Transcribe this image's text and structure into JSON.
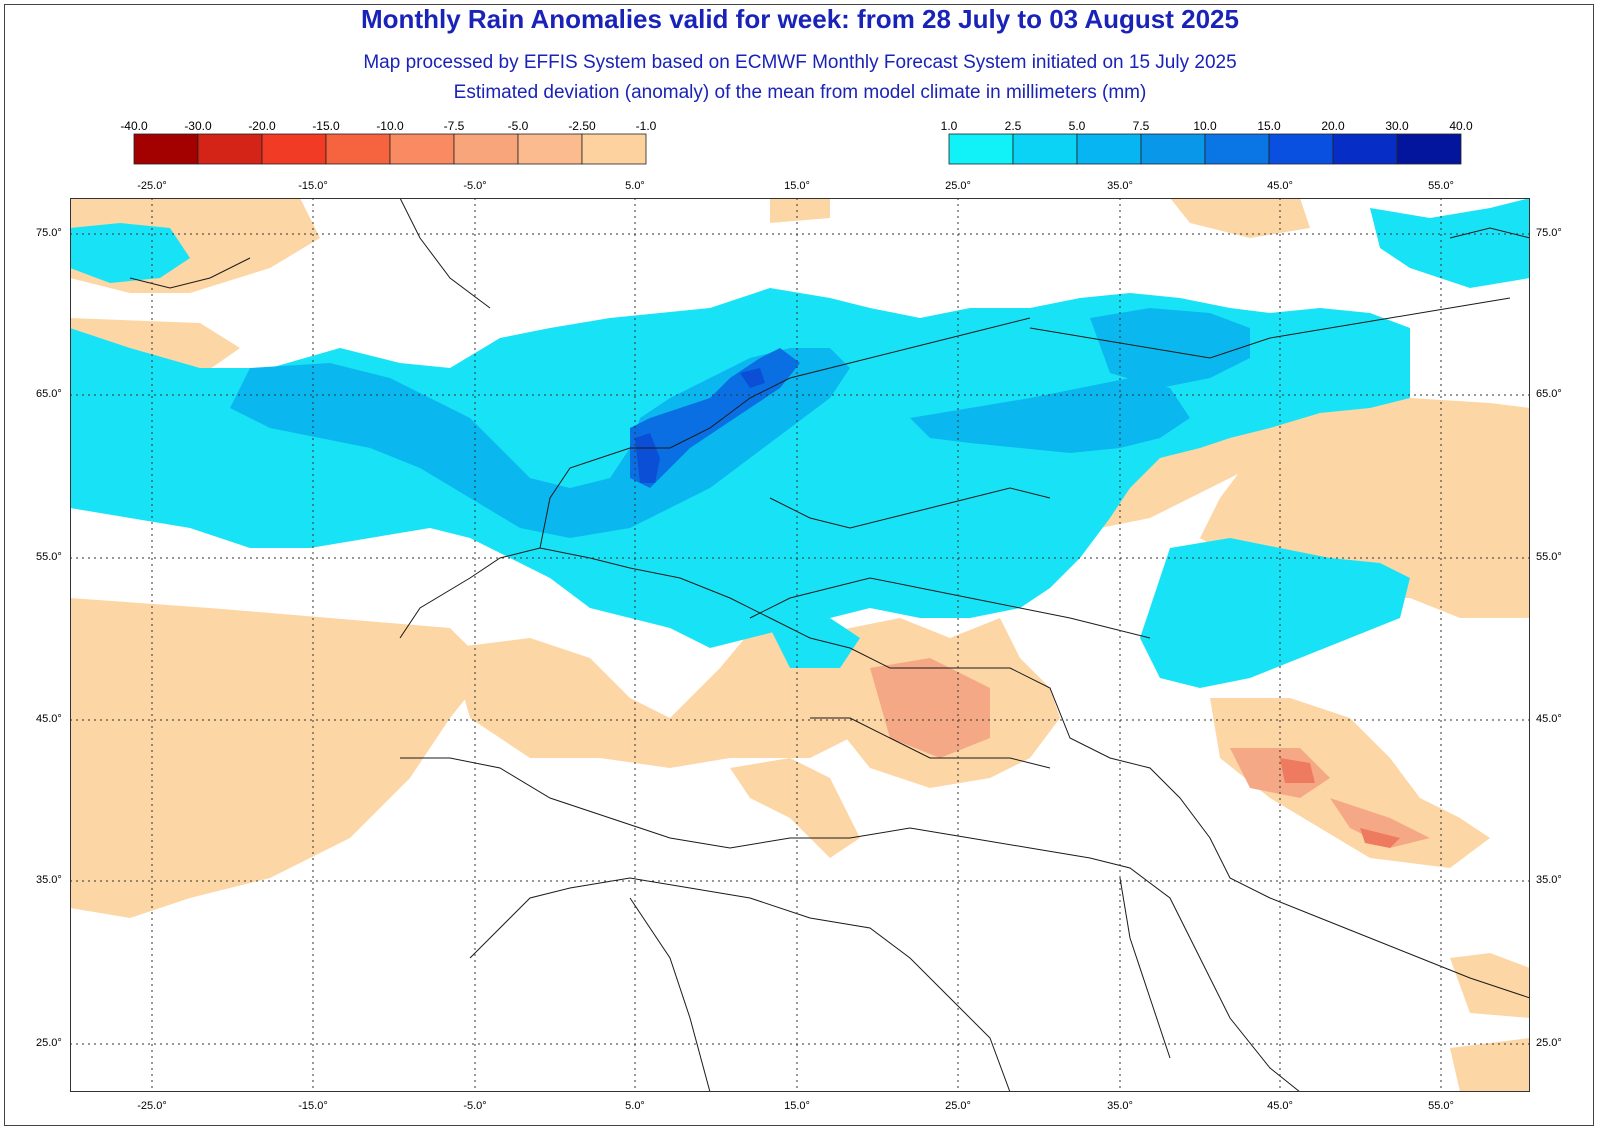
{
  "header": {
    "title": "Monthly Rain Anomalies valid for week: from 28 July to 03 August 2025",
    "subtitle_1": "Map processed by EFFIS System based on ECMWF Monthly Forecast System initiated on 15 July 2025",
    "subtitle_2": "Estimated deviation (anomaly) of the mean from model climate in millimeters (mm)"
  },
  "legend_negative": {
    "ticks": [
      "-40.0",
      "-30.0",
      "-20.0",
      "-15.0",
      "-10.0",
      "-7.5",
      "-5.0",
      "-2.50",
      "-1.0"
    ],
    "colors": [
      "#a30000",
      "#d42317",
      "#f23b24",
      "#f5643f",
      "#f98a61",
      "#f9a57b",
      "#fbbb8f",
      "#fdd29f"
    ]
  },
  "legend_positive": {
    "ticks": [
      "1.0",
      "2.5",
      "5.0",
      "7.5",
      "10.0",
      "15.0",
      "20.0",
      "30.0",
      "40.0"
    ],
    "colors": [
      "#10f1f8",
      "#0bd3f6",
      "#07b5f2",
      "#0997ea",
      "#0a75e5",
      "#0950e0",
      "#062dc5",
      "#03159c"
    ]
  },
  "axes": {
    "longitude_labels": [
      "-25.0°",
      "-15.0°",
      "-5.0°",
      "5.0°",
      "15.0°",
      "25.0°",
      "35.0°",
      "45.0°",
      "55.0°"
    ],
    "latitude_labels": [
      "75.0°",
      "65.0°",
      "55.0°",
      "45.0°",
      "35.0°",
      "25.0°"
    ]
  },
  "map": {
    "land_fill": "#ffffff",
    "border_color": "#1a1a1a",
    "grid_style": "dotted"
  }
}
